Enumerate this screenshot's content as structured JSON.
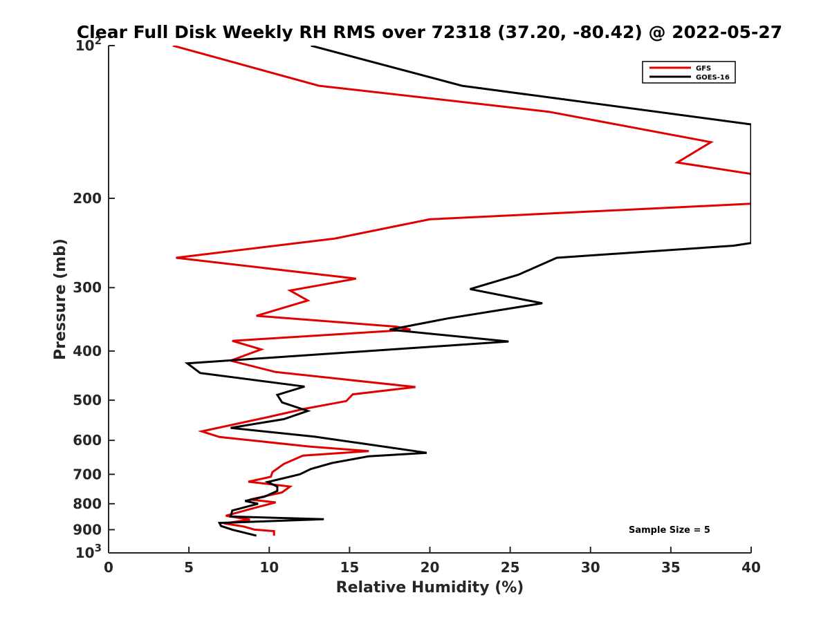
{
  "chart_data": {
    "type": "line",
    "title": "Clear Full Disk Weekly RH RMS over 72318 (37.20, -80.42) @ 2022-05-27",
    "xlabel": "Relative Humidity (%)",
    "ylabel": "Pressure (mb)",
    "xlim": [
      0,
      40
    ],
    "ylim": [
      100,
      1000
    ],
    "y_scale": "log",
    "y_reversed": true,
    "grid": false,
    "legend_position": "top-right",
    "x_ticks": [
      "0",
      "5",
      "10",
      "15",
      "20",
      "25",
      "30",
      "35",
      "40"
    ],
    "y_ticks": [
      {
        "value": 100,
        "base": "10",
        "exp": "2"
      },
      {
        "value": 200,
        "label": "200"
      },
      {
        "value": 300,
        "label": "300"
      },
      {
        "value": 400,
        "label": "400"
      },
      {
        "value": 500,
        "label": "500"
      },
      {
        "value": 600,
        "label": "600"
      },
      {
        "value": 700,
        "label": "700"
      },
      {
        "value": 800,
        "label": "800"
      },
      {
        "value": 900,
        "label": "900"
      },
      {
        "value": 1000,
        "base": "10",
        "exp": "3"
      }
    ],
    "series": [
      {
        "name": "GFS",
        "color": "#e00000",
        "points": [
          [
            4.0,
            100
          ],
          [
            13.1,
            120
          ],
          [
            27.4,
            135
          ],
          [
            37.5,
            155
          ],
          [
            35.4,
            170
          ],
          [
            40.0,
            179
          ],
          [
            40.0,
            205
          ],
          [
            20.0,
            220
          ],
          [
            14.1,
            240
          ],
          [
            4.2,
            262
          ],
          [
            15.4,
            288
          ],
          [
            11.3,
            304
          ],
          [
            12.4,
            318
          ],
          [
            9.2,
            341
          ],
          [
            17.9,
            358
          ],
          [
            18.8,
            363
          ],
          [
            7.7,
            382
          ],
          [
            9.5,
            397
          ],
          [
            7.6,
            418
          ],
          [
            10.4,
            440
          ],
          [
            19.1,
            471
          ],
          [
            15.2,
            487
          ],
          [
            14.8,
            502
          ],
          [
            12.2,
            520
          ],
          [
            9.9,
            540
          ],
          [
            5.8,
            576
          ],
          [
            6.9,
            591
          ],
          [
            12.5,
            617
          ],
          [
            16.2,
            630
          ],
          [
            12.1,
            643
          ],
          [
            10.9,
            668
          ],
          [
            10.2,
            693
          ],
          [
            10.1,
            708
          ],
          [
            8.7,
            724
          ],
          [
            11.3,
            740
          ],
          [
            10.8,
            760
          ],
          [
            8.8,
            785
          ],
          [
            10.4,
            795
          ],
          [
            8.8,
            820
          ],
          [
            7.3,
            845
          ],
          [
            8.8,
            860
          ],
          [
            7.2,
            875
          ],
          [
            8.4,
            887
          ],
          [
            9.1,
            900
          ],
          [
            10.3,
            906
          ],
          [
            10.3,
            925
          ]
        ]
      },
      {
        "name": "GOES-16",
        "color": "#000000",
        "points": [
          [
            12.6,
            100
          ],
          [
            22.0,
            120
          ],
          [
            40.0,
            143
          ],
          [
            40.0,
            245
          ],
          [
            38.9,
            248
          ],
          [
            27.9,
            262
          ],
          [
            25.5,
            283
          ],
          [
            22.5,
            302
          ],
          [
            27.0,
            322
          ],
          [
            21.1,
            345
          ],
          [
            17.5,
            363
          ],
          [
            24.9,
            383
          ],
          [
            16.2,
            400
          ],
          [
            4.9,
            423
          ],
          [
            5.7,
            442
          ],
          [
            12.2,
            470
          ],
          [
            10.5,
            488
          ],
          [
            10.8,
            505
          ],
          [
            12.4,
            525
          ],
          [
            10.9,
            545
          ],
          [
            7.6,
            567
          ],
          [
            12.8,
            590
          ],
          [
            15.7,
            608
          ],
          [
            19.8,
            635
          ],
          [
            16.2,
            645
          ],
          [
            13.9,
            665
          ],
          [
            12.6,
            683
          ],
          [
            11.9,
            700
          ],
          [
            9.9,
            725
          ],
          [
            10.5,
            740
          ],
          [
            10.5,
            755
          ],
          [
            9.7,
            775
          ],
          [
            8.5,
            790
          ],
          [
            9.3,
            800
          ],
          [
            7.7,
            825
          ],
          [
            7.6,
            848
          ],
          [
            13.4,
            858
          ],
          [
            6.9,
            873
          ],
          [
            7.0,
            885
          ],
          [
            7.7,
            900
          ],
          [
            9.2,
            925
          ]
        ]
      }
    ],
    "annotations": [
      "Sample Size = 5"
    ]
  }
}
